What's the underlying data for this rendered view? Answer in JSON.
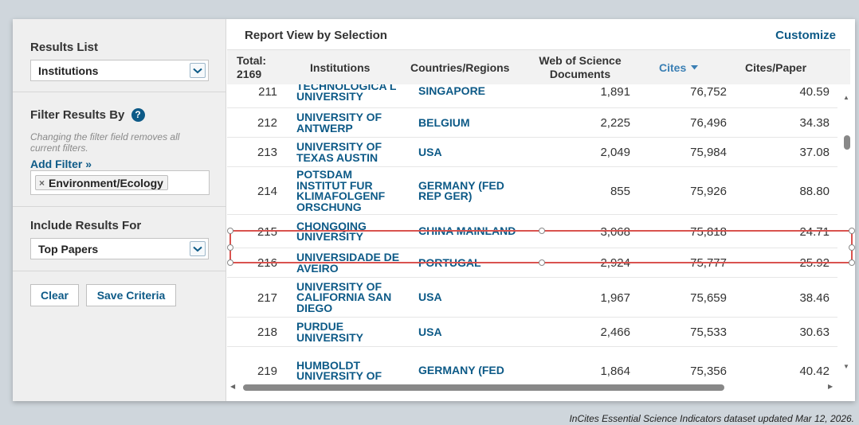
{
  "sidebar": {
    "results_list": {
      "title": "Results List",
      "selected": "Institutions"
    },
    "filter": {
      "title": "Filter Results By",
      "help": "?",
      "note": "Changing the filter field removes all current filters.",
      "add_filter": "Add Filter »",
      "chip": "Environment/Ecology",
      "chip_remove": "×"
    },
    "include": {
      "title": "Include Results For",
      "selected": "Top Papers"
    },
    "buttons": {
      "clear": "Clear",
      "save": "Save Criteria"
    }
  },
  "report": {
    "title": "Report View by Selection",
    "customize": "Customize",
    "total_label": "Total:",
    "total_value": "2169",
    "columns": {
      "institutions": "Institutions",
      "countries": "Countries/Regions",
      "docs_line1": "Web of Science",
      "docs_line2": "Documents",
      "cites": "Cites",
      "cites_per_paper": "Cites/Paper"
    },
    "rows": [
      {
        "rank": "211",
        "institution": "TECHNOLOGICA L UNIVERSITY",
        "country": "SINGAPORE",
        "documents": "1,891",
        "cites": "76,752",
        "cites_per_paper": "40.59"
      },
      {
        "rank": "212",
        "institution": "UNIVERSITY OF ANTWERP",
        "country": "BELGIUM",
        "documents": "2,225",
        "cites": "76,496",
        "cites_per_paper": "34.38"
      },
      {
        "rank": "213",
        "institution": "UNIVERSITY OF TEXAS AUSTIN",
        "country": "USA",
        "documents": "2,049",
        "cites": "75,984",
        "cites_per_paper": "37.08"
      },
      {
        "rank": "214",
        "institution": "POTSDAM INSTITUT FUR KLIMAFOLGENF ORSCHUNG",
        "country": "GERMANY (FED REP GER)",
        "documents": "855",
        "cites": "75,926",
        "cites_per_paper": "88.80"
      },
      {
        "rank": "215",
        "institution": "CHONGQING UNIVERSITY",
        "country": "CHINA MAINLAND",
        "documents": "3,068",
        "cites": "75,818",
        "cites_per_paper": "24.71"
      },
      {
        "rank": "216",
        "institution": "UNIVERSIDADE DE AVEIRO",
        "country": "PORTUGAL",
        "documents": "2,924",
        "cites": "75,777",
        "cites_per_paper": "25.92"
      },
      {
        "rank": "217",
        "institution": "UNIVERSITY OF CALIFORNIA SAN DIEGO",
        "country": "USA",
        "documents": "1,967",
        "cites": "75,659",
        "cites_per_paper": "38.46"
      },
      {
        "rank": "218",
        "institution": "PURDUE UNIVERSITY",
        "country": "USA",
        "documents": "2,466",
        "cites": "75,533",
        "cites_per_paper": "30.63"
      },
      {
        "rank": "219",
        "institution": "HUMBOLDT UNIVERSITY OF",
        "country": "GERMANY (FED",
        "documents": "1,864",
        "cites": "75,356",
        "cites_per_paper": "40.42"
      }
    ],
    "highlighted_rank": "215"
  },
  "footnote": "InCites Essential Science Indicators dataset updated Mar 12, 2026.",
  "colors": {
    "link": "#0d5a87",
    "sort": "#3a7fb4",
    "highlight": "#d9534f"
  },
  "icons": {
    "select_caret": "chevron-down-icon",
    "sort": "caret-down-icon"
  }
}
